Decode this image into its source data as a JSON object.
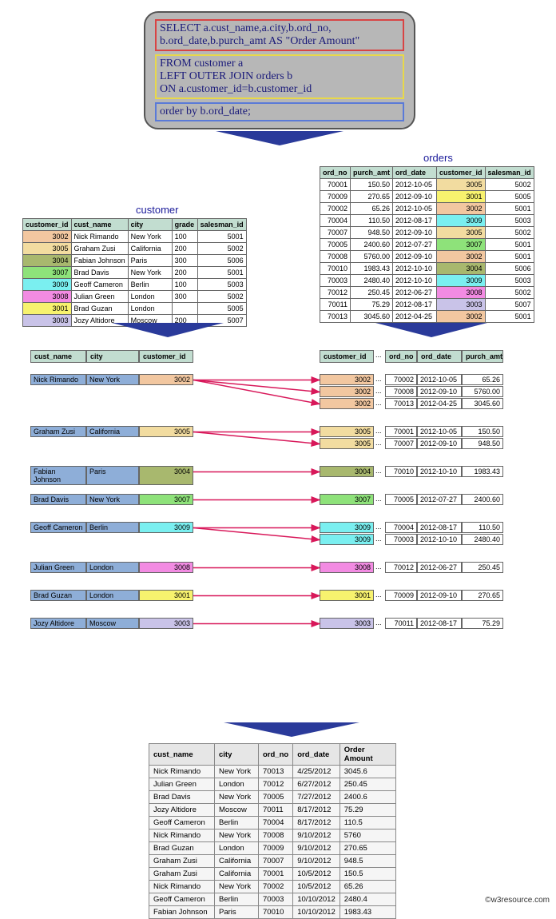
{
  "sql": {
    "select": "SELECT",
    "select_fields1": " a.cust_name,a.city,b.ord_no,",
    "select_fields2": "b.ord_date,b.purch_amt AS \"Order Amount\"",
    "from": "FROM",
    "from_rest": " customer a",
    "join1": "LEFT OUTER JOIN orders b",
    "join2": "ON a.customer_id=b.customer_id",
    "order": "order by b.ord_date;"
  },
  "titles": {
    "customer": "customer",
    "orders": "orders"
  },
  "customer": {
    "cols": [
      "customer_id",
      "cust_name",
      "city",
      "grade",
      "salesman_id"
    ],
    "rows": [
      [
        "3002",
        "Nick Rimando",
        "New York",
        "100",
        "5001"
      ],
      [
        "3005",
        "Graham Zusi",
        "California",
        "200",
        "5002"
      ],
      [
        "3004",
        "Fabian Johnson",
        "Paris",
        "300",
        "5006"
      ],
      [
        "3007",
        "Brad Davis",
        "New York",
        "200",
        "5001"
      ],
      [
        "3009",
        "Geoff Cameron",
        "Berlin",
        "100",
        "5003"
      ],
      [
        "3008",
        "Julian Green",
        "London",
        "300",
        "5002"
      ],
      [
        "3001",
        "Brad Guzan",
        "London",
        "",
        "5005"
      ],
      [
        "3003",
        "Jozy Altidore",
        "Moscow",
        "200",
        "5007"
      ]
    ]
  },
  "orders": {
    "cols": [
      "ord_no",
      "purch_amt",
      "ord_date",
      "customer_id",
      "salesman_id"
    ],
    "rows": [
      [
        "70001",
        "150.50",
        "2012-10-05",
        "3005",
        "5002"
      ],
      [
        "70009",
        "270.65",
        "2012-09-10",
        "3001",
        "5005"
      ],
      [
        "70002",
        "65.26",
        "2012-10-05",
        "3002",
        "5001"
      ],
      [
        "70004",
        "110.50",
        "2012-08-17",
        "3009",
        "5003"
      ],
      [
        "70007",
        "948.50",
        "2012-09-10",
        "3005",
        "5002"
      ],
      [
        "70005",
        "2400.60",
        "2012-07-27",
        "3007",
        "5001"
      ],
      [
        "70008",
        "5760.00",
        "2012-09-10",
        "3002",
        "5001"
      ],
      [
        "70010",
        "1983.43",
        "2012-10-10",
        "3004",
        "5006"
      ],
      [
        "70003",
        "2480.40",
        "2012-10-10",
        "3009",
        "5003"
      ],
      [
        "70012",
        "250.45",
        "2012-06-27",
        "3008",
        "5002"
      ],
      [
        "70011",
        "75.29",
        "2012-08-17",
        "3003",
        "5007"
      ],
      [
        "70013",
        "3045.60",
        "2012-04-25",
        "3002",
        "5001"
      ]
    ]
  },
  "join_left_cols": [
    "cust_name",
    "city",
    "customer_id"
  ],
  "join_right_cols": [
    "customer_id",
    "...",
    "ord_no",
    "ord_date",
    "purch_amt"
  ],
  "join_groups": [
    {
      "name": "Nick Rimando",
      "city": "New York",
      "id": "3002",
      "matches": [
        {
          "ord": "70002",
          "date": "2012-10-05",
          "amt": "65.26"
        },
        {
          "ord": "70008",
          "date": "2012-09-10",
          "amt": "5760.00"
        },
        {
          "ord": "70013",
          "date": "2012-04-25",
          "amt": "3045.60"
        }
      ]
    },
    {
      "name": "Graham Zusi",
      "city": "California",
      "id": "3005",
      "matches": [
        {
          "ord": "70001",
          "date": "2012-10-05",
          "amt": "150.50"
        },
        {
          "ord": "70007",
          "date": "2012-09-10",
          "amt": "948.50"
        }
      ]
    },
    {
      "name": "Fabian Johnson",
      "city": "Paris",
      "id": "3004",
      "matches": [
        {
          "ord": "70010",
          "date": "2012-10-10",
          "amt": "1983.43"
        }
      ]
    },
    {
      "name": "Brad Davis",
      "city": "New York",
      "id": "3007",
      "matches": [
        {
          "ord": "70005",
          "date": "2012-07-27",
          "amt": "2400.60"
        }
      ]
    },
    {
      "name": "Geoff Cameron",
      "city": "Berlin",
      "id": "3009",
      "matches": [
        {
          "ord": "70004",
          "date": "2012-08-17",
          "amt": "110.50"
        },
        {
          "ord": "70003",
          "date": "2012-10-10",
          "amt": "2480.40"
        }
      ]
    },
    {
      "name": "Julian Green",
      "city": "London",
      "id": "3008",
      "matches": [
        {
          "ord": "70012",
          "date": "2012-06-27",
          "amt": "250.45"
        }
      ]
    },
    {
      "name": "Brad Guzan",
      "city": "London",
      "id": "3001",
      "matches": [
        {
          "ord": "70009",
          "date": "2012-09-10",
          "amt": "270.65"
        }
      ]
    },
    {
      "name": "Jozy Altidore",
      "city": "Moscow",
      "id": "3003",
      "matches": [
        {
          "ord": "70011",
          "date": "2012-08-17",
          "amt": "75.29"
        }
      ]
    }
  ],
  "result": {
    "cols": [
      "cust_name",
      "city",
      "ord_no",
      "ord_date",
      "Order Amount"
    ],
    "rows": [
      [
        "Nick Rimando",
        "New York",
        "70013",
        "4/25/2012",
        "3045.6"
      ],
      [
        "Julian Green",
        "London",
        "70012",
        "6/27/2012",
        "250.45"
      ],
      [
        "Brad Davis",
        "New York",
        "70005",
        "7/27/2012",
        "2400.6"
      ],
      [
        "Jozy Altidore",
        "Moscow",
        "70011",
        "8/17/2012",
        "75.29"
      ],
      [
        "Geoff Cameron",
        "Berlin",
        "70004",
        "8/17/2012",
        "110.5"
      ],
      [
        "Nick Rimando",
        "New York",
        "70008",
        "9/10/2012",
        "5760"
      ],
      [
        "Brad Guzan",
        "London",
        "70009",
        "9/10/2012",
        "270.65"
      ],
      [
        "Graham Zusi",
        "California",
        "70007",
        "9/10/2012",
        "948.5"
      ],
      [
        "Graham Zusi",
        "California",
        "70001",
        "10/5/2012",
        "150.5"
      ],
      [
        "Nick Rimando",
        "New York",
        "70002",
        "10/5/2012",
        "65.26"
      ],
      [
        "Geoff Cameron",
        "Berlin",
        "70003",
        "10/10/2012",
        "2480.4"
      ],
      [
        "Fabian Johnson",
        "Paris",
        "70010",
        "10/10/2012",
        "1983.43"
      ]
    ]
  },
  "copyright": "©w3resource.com",
  "layout": {
    "cust_col_w": [
      55,
      70,
      55,
      32,
      55
    ],
    "ord_col_w": [
      38,
      50,
      55,
      55,
      55
    ],
    "join_left_w": [
      70,
      66,
      68
    ],
    "join_right_w": [
      68,
      14,
      40,
      56,
      52
    ],
    "result_col_w": [
      82,
      55,
      40,
      55,
      70
    ],
    "arrow_color": "#d8185a",
    "down_arrow_fill": "#2a3a9a"
  }
}
